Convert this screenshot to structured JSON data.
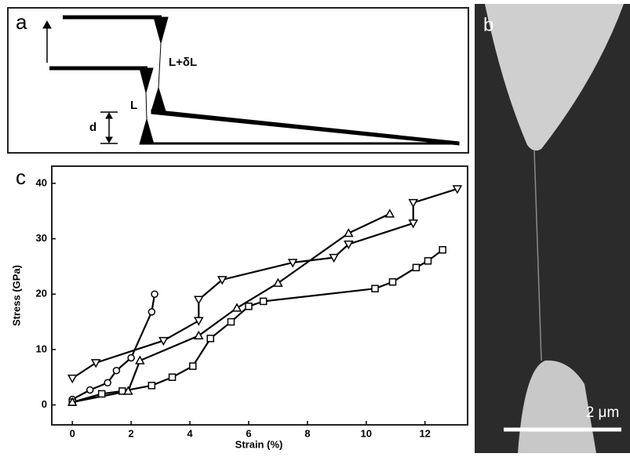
{
  "panel_a": {
    "label": "a",
    "long_label": "L+δL",
    "short_label": "L",
    "gap_label": "d"
  },
  "panel_b": {
    "label": "b",
    "scale_bar": "2 μm"
  },
  "chart_data": {
    "type": "line",
    "panel_label": "c",
    "x_label": "Strain (%)",
    "y_label": "Stress (GPa)",
    "xlim": [
      -0.7,
      13.45
    ],
    "ylim": [
      -3.6,
      43.1
    ],
    "xticks": [
      0,
      2,
      4,
      6,
      8,
      10,
      12
    ],
    "yticks": [
      0,
      10,
      20,
      30,
      40
    ],
    "series": [
      {
        "color": "#000000",
        "marker": "circle",
        "x": [
          0,
          0.6,
          1.2,
          1.5,
          2,
          2.7,
          2.8
        ],
        "values": [
          1,
          2.7,
          4,
          6.2,
          8.5,
          16.8,
          20
        ]
      },
      {
        "color": "#000000",
        "marker": "square",
        "x": [
          0,
          1,
          1.7,
          2.7,
          3.4,
          4.1,
          4.7,
          5.4,
          6,
          6.5,
          10.3,
          10.9,
          11.7,
          12.1,
          12.6
        ],
        "values": [
          0.5,
          2,
          2.5,
          3.5,
          5,
          7,
          12,
          15,
          17.8,
          18.7,
          21,
          22.2,
          24.8,
          26,
          28
        ]
      },
      {
        "color": "#000000",
        "marker": "triangle-up",
        "x": [
          0,
          1.9,
          2.3,
          4.3,
          5.6,
          7,
          9.4,
          10.8
        ],
        "values": [
          0.5,
          2.5,
          8,
          12.5,
          17.5,
          22,
          31,
          34.5
        ]
      },
      {
        "color": "#000000",
        "marker": "triangle-down",
        "x": [
          0,
          0.8,
          3.1,
          4.3,
          4.3,
          5.1,
          7.5,
          8.9,
          9.4,
          11.6,
          11.6,
          13.1
        ],
        "values": [
          4.8,
          7.6,
          11.6,
          15.2,
          19,
          22.6,
          25.7,
          26.6,
          29,
          32.8,
          36.5,
          39
        ]
      }
    ]
  }
}
